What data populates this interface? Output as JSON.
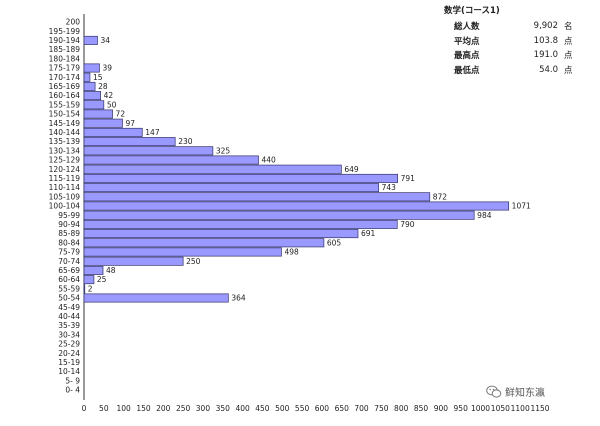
{
  "chart_data": {
    "type": "bar",
    "orientation": "horizontal",
    "categories": [
      "0- 4",
      "5- 9",
      "10-14",
      "15-19",
      "20-24",
      "25-29",
      "30-34",
      "35-39",
      "40-44",
      "45-49",
      "50-54",
      "55-59",
      "60-64",
      "65-69",
      "70-74",
      "75-79",
      "80-84",
      "85-89",
      "90-94",
      "95-99",
      "100-104",
      "105-109",
      "110-114",
      "115-119",
      "120-124",
      "125-129",
      "130-134",
      "135-139",
      "140-144",
      "145-149",
      "150-154",
      "155-159",
      "160-164",
      "165-169",
      "170-174",
      "175-179",
      "180-184",
      "185-189",
      "190-194",
      "195-199",
      "200"
    ],
    "values": [
      null,
      null,
      null,
      null,
      null,
      null,
      null,
      null,
      null,
      null,
      364,
      2,
      25,
      48,
      250,
      498,
      605,
      691,
      790,
      984,
      1071,
      872,
      743,
      791,
      649,
      440,
      325,
      230,
      147,
      97,
      72,
      50,
      42,
      28,
      15,
      39,
      null,
      null,
      34,
      null,
      null
    ],
    "xlim": [
      0,
      1150
    ],
    "xticks": [
      "0",
      "50",
      "100",
      "150",
      "200",
      "250",
      "300",
      "350",
      "400",
      "450",
      "500",
      "550",
      "600",
      "650",
      "700",
      "750",
      "800",
      "850",
      "900",
      "950",
      "1000",
      "1050",
      "1100",
      "1150"
    ],
    "grid": false
  },
  "stats": {
    "title": "数学(コース1)",
    "rows": [
      {
        "label": "総人数",
        "value": "9,902",
        "unit": "名"
      },
      {
        "label": "平均点",
        "value": "103.8",
        "unit": "点"
      },
      {
        "label": "最高点",
        "value": "191.0",
        "unit": "点"
      },
      {
        "label": "最低点",
        "value": "54.0",
        "unit": "点"
      }
    ]
  },
  "watermark": {
    "text": "鲜知东瀛",
    "icon": "wechat-logo-icon"
  }
}
